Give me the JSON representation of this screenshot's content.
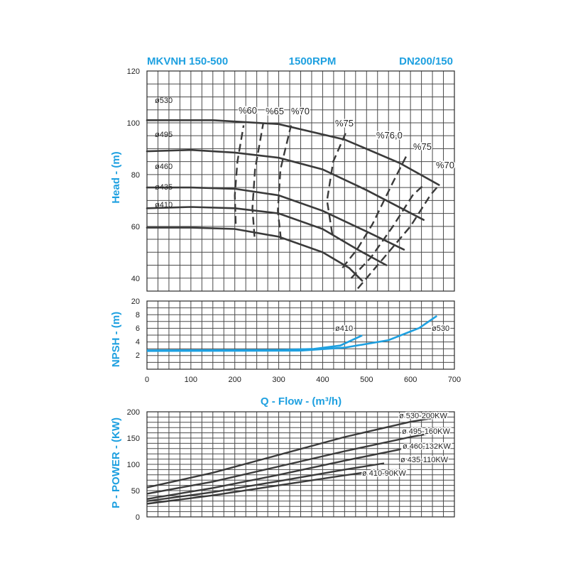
{
  "header": {
    "model": "MKVNH 150-500",
    "speed": "1500RPM",
    "dn": "DN200/150"
  },
  "colors": {
    "accent": "#1ea0e0",
    "curve": "#3a3a3a",
    "npsh": "#1ea0e0",
    "grid": "#4a4a4a"
  },
  "chart_data": [
    {
      "type": "line",
      "id": "head",
      "ylabel": "Head - (m)",
      "xlim": [
        0,
        700
      ],
      "ylim": [
        35,
        120
      ],
      "y_ticks": [
        40,
        60,
        80,
        100,
        120
      ],
      "grid": true,
      "series": [
        {
          "name": "ø530",
          "points": [
            [
              0,
              101
            ],
            [
              150,
              101
            ],
            [
              300,
              99.5
            ],
            [
              450,
              93.5
            ],
            [
              575,
              84.5
            ],
            [
              665,
              76
            ]
          ]
        },
        {
          "name": "ø495",
          "points": [
            [
              0,
              89
            ],
            [
              100,
              89.5
            ],
            [
              200,
              88.5
            ],
            [
              300,
              86.5
            ],
            [
              400,
              82
            ],
            [
              500,
              74
            ],
            [
              630,
              62.5
            ]
          ]
        },
        {
          "name": "ø460",
          "points": [
            [
              0,
              75
            ],
            [
              100,
              75
            ],
            [
              200,
              74.5
            ],
            [
              300,
              72
            ],
            [
              400,
              66
            ],
            [
              500,
              58
            ],
            [
              585,
              51
            ]
          ]
        },
        {
          "name": "ø435",
          "points": [
            [
              0,
              67
            ],
            [
              100,
              67.5
            ],
            [
              200,
              67
            ],
            [
              300,
              65
            ],
            [
              400,
              59
            ],
            [
              480,
              51
            ],
            [
              545,
              45
            ]
          ]
        },
        {
          "name": "ø410",
          "points": [
            [
              0,
              59.5
            ],
            [
              100,
              59.5
            ],
            [
              200,
              59
            ],
            [
              300,
              56
            ],
            [
              400,
              50
            ],
            [
              460,
              44
            ],
            [
              490,
              39
            ]
          ]
        }
      ],
      "efficiency_curves": [
        {
          "name": "%60",
          "points": [
            [
              202,
              61
            ],
            [
              200,
              72
            ],
            [
              206,
              85
            ],
            [
              220,
              99
            ]
          ]
        },
        {
          "name": "%65",
          "points": [
            [
              245,
              56
            ],
            [
              240,
              67
            ],
            [
              246,
              82
            ],
            [
              265,
              100
            ]
          ]
        },
        {
          "name": "%70",
          "points": [
            [
              305,
              55
            ],
            [
              298,
              66
            ],
            [
              304,
              82
            ],
            [
              328,
              99
            ]
          ]
        },
        {
          "name": "%75",
          "points": [
            [
              422,
              57
            ],
            [
              410,
              70
            ],
            [
              424,
              85
            ],
            [
              455,
              97
            ]
          ]
        },
        {
          "name": "%76,0",
          "points": [
            [
              445,
              44
            ],
            [
              478,
              51
            ],
            [
              514,
              61
            ],
            [
              560,
              77
            ],
            [
              590,
              87
            ]
          ]
        },
        {
          "name": "%75",
          "points": [
            [
              465,
              40
            ],
            [
              510,
              48
            ],
            [
              560,
              60
            ],
            [
              605,
              72
            ],
            [
              630,
              76
            ]
          ]
        },
        {
          "name": "%70",
          "points": [
            [
              480,
              36
            ],
            [
              540,
              48
            ],
            [
              600,
              60
            ],
            [
              645,
              72
            ],
            [
              665,
              76
            ]
          ]
        }
      ],
      "diameter_labels": [
        "ø530",
        "ø495",
        "ø460",
        "ø435",
        "ø410"
      ],
      "efficiency_labels": [
        "%60",
        "%65",
        "%70",
        "%75",
        "%76,0",
        "%75",
        "%70"
      ]
    },
    {
      "type": "line",
      "id": "npsh",
      "ylabel": "NPSH - (m)",
      "xlabel": "Q - Flow - (m³/h)",
      "xlim": [
        0,
        700
      ],
      "x_ticks": [
        0,
        100,
        200,
        300,
        400,
        500,
        600,
        700
      ],
      "y_ticks": [
        2,
        4,
        6,
        8,
        20
      ],
      "grid": true,
      "series": [
        {
          "name": "ø410",
          "points": [
            [
              0,
              2.7
            ],
            [
              300,
              2.75
            ],
            [
              380,
              2.9
            ],
            [
              440,
              3.4
            ],
            [
              490,
              4.9
            ]
          ]
        },
        {
          "name": "ø530",
          "points": [
            [
              0,
              2.6
            ],
            [
              350,
              2.65
            ],
            [
              450,
              3.1
            ],
            [
              550,
              4.2
            ],
            [
              620,
              6.0
            ],
            [
              660,
              7.8
            ]
          ]
        }
      ]
    },
    {
      "type": "line",
      "id": "power",
      "ylabel": "P - POWER - (KW)",
      "xlim": [
        0,
        700
      ],
      "ylim": [
        0,
        200
      ],
      "y_ticks": [
        0,
        50,
        100,
        150,
        200
      ],
      "grid": true,
      "series": [
        {
          "name": "ø 530-200KW",
          "points": [
            [
              0,
              56
            ],
            [
              150,
              84
            ],
            [
              300,
              118
            ],
            [
              450,
              152
            ],
            [
              600,
              181
            ],
            [
              665,
              190
            ]
          ]
        },
        {
          "name": "ø 495-160KW",
          "points": [
            [
              0,
              44
            ],
            [
              150,
              67
            ],
            [
              300,
              96
            ],
            [
              450,
              125
            ],
            [
              600,
              152
            ],
            [
              640,
              158
            ]
          ]
        },
        {
          "name": "ø 460-132KW",
          "points": [
            [
              0,
              34
            ],
            [
              150,
              55
            ],
            [
              300,
              80
            ],
            [
              450,
              107
            ],
            [
              580,
              129
            ]
          ]
        },
        {
          "name": "ø 435-110KW",
          "points": [
            [
              0,
              30
            ],
            [
              150,
              47
            ],
            [
              300,
              68
            ],
            [
              450,
              90
            ],
            [
              540,
              102
            ]
          ]
        },
        {
          "name": "ø 410-90KW",
          "points": [
            [
              0,
              25
            ],
            [
              150,
              41
            ],
            [
              300,
              60
            ],
            [
              450,
              79
            ],
            [
              500,
              85
            ]
          ]
        }
      ]
    }
  ]
}
